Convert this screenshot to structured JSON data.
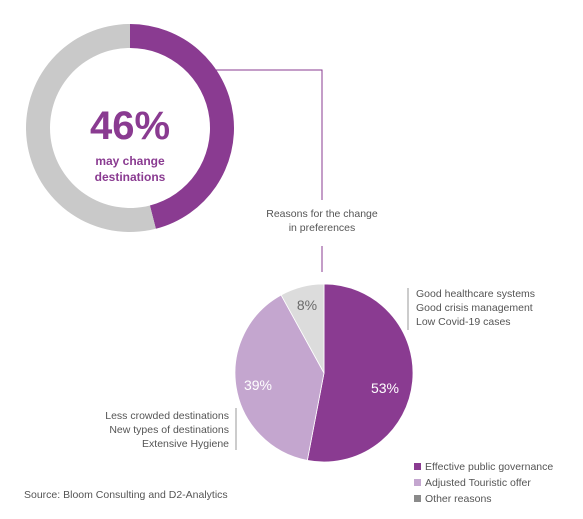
{
  "colors": {
    "purple": "#8a3b91",
    "light_purple": "#c4a6cf",
    "gray": "#c9c9c9",
    "light_gray": "#dcdcdc",
    "legend_gray": "#8a8a8a",
    "connector": "#8a3b91"
  },
  "donut": {
    "value_label": "46%",
    "subtitle_line1": "may change",
    "subtitle_line2": "destinations"
  },
  "reasons_title_line1": "Reasons for the change",
  "reasons_title_line2": "in preferences",
  "annotations": {
    "right": [
      "Good healthcare systems",
      "Good crisis management",
      "Low Covid-19 cases"
    ],
    "left": [
      "Less crowded destinations",
      "New types of destinations",
      "Extensive Hygiene"
    ]
  },
  "pie_labels": [
    "53%",
    "39%",
    "8%"
  ],
  "legend": [
    "Effective public governance",
    "Adjusted Touristic offer",
    "Other reasons"
  ],
  "source": "Source: Bloom Consulting and D2-Analytics",
  "chart_data": [
    {
      "type": "pie",
      "variant": "donut",
      "categories": [
        "may change destinations",
        "other"
      ],
      "values": [
        46,
        54
      ]
    },
    {
      "type": "pie",
      "title": "Reasons for the change in preferences",
      "categories": [
        "Effective public governance",
        "Adjusted Touristic offer",
        "Other reasons"
      ],
      "values": [
        53,
        39,
        8
      ]
    }
  ]
}
